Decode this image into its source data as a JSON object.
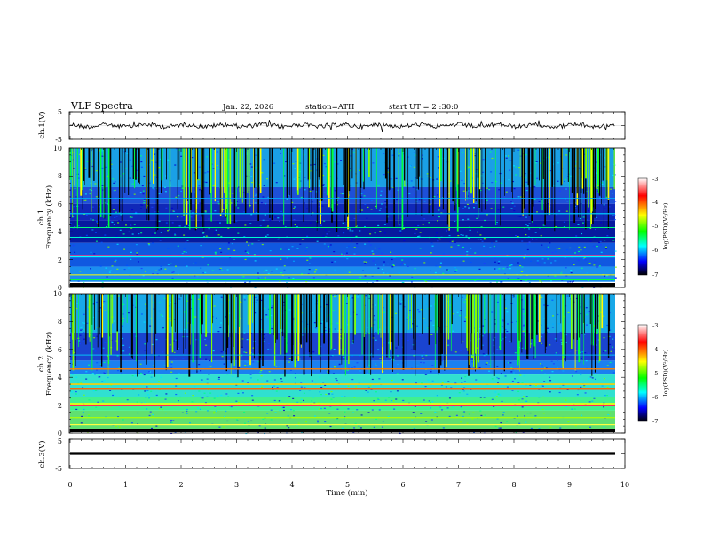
{
  "header": {
    "title": "VLF Spectra",
    "date": "Jan. 22, 2026",
    "station": "station=ATH",
    "start": "start UT =  2 :30:0"
  },
  "x_axis": {
    "label": "Time (min)",
    "ticks": [
      "0",
      "1",
      "2",
      "3",
      "4",
      "5",
      "6",
      "7",
      "8",
      "9",
      "10"
    ]
  },
  "panels": {
    "ch1v": {
      "label": "ch.1(V)",
      "ticks": [
        "5",
        "-5"
      ]
    },
    "ch1": {
      "label_ch": "ch.1",
      "label_freq": "Frequency (kHz)",
      "ticks": [
        "10",
        "8",
        "6",
        "4",
        "2",
        "0"
      ]
    },
    "ch2": {
      "label_ch": "ch.2",
      "label_freq": "Frequency (kHz)",
      "ticks": [
        "10",
        "8",
        "6",
        "4",
        "2",
        "0"
      ]
    },
    "ch3v": {
      "label": "ch.3(V)",
      "ticks": [
        "5",
        "-5"
      ]
    }
  },
  "colorbar": {
    "label": "log(PSD)(V²/Hz)",
    "ticks": [
      "-3",
      "-4",
      "-5",
      "-6",
      "-7"
    ],
    "colors": [
      "#ffffff",
      "#ff0000",
      "#ffff00",
      "#00ff00",
      "#00ffff",
      "#0000ff",
      "#000000"
    ]
  },
  "chart_data": [
    {
      "type": "line",
      "title": "ch.1(V)",
      "xlabel": "Time (min)",
      "ylabel": "ch.1(V)",
      "xlim": [
        0,
        10
      ],
      "ylim": [
        -5,
        5
      ],
      "series": [
        {
          "values_note_mean": 0,
          "x": [
            0,
            9.8
          ],
          "y": [
            0,
            0
          ]
        }
      ]
    },
    {
      "type": "heatmap",
      "title": "ch.1",
      "xlabel": "Time (min)",
      "ylabel": "Frequency (kHz)",
      "xlim": [
        0,
        10
      ],
      "ylim": [
        0,
        10
      ],
      "colorbar_range": [
        -7,
        -3
      ]
    },
    {
      "type": "heatmap",
      "title": "ch.2",
      "xlabel": "Time (min)",
      "ylabel": "Frequency (kHz)",
      "xlim": [
        0,
        10
      ],
      "ylim": [
        0,
        10
      ],
      "colorbar_range": [
        -7,
        -3
      ]
    },
    {
      "type": "line",
      "title": "ch.3(V)",
      "xlabel": "Time (min)",
      "ylabel": "ch.3(V)",
      "xlim": [
        0,
        10
      ],
      "ylim": [
        -5,
        5
      ],
      "series": [
        {
          "x": [
            0,
            9.8
          ],
          "y": [
            0,
            0
          ]
        }
      ]
    }
  ]
}
